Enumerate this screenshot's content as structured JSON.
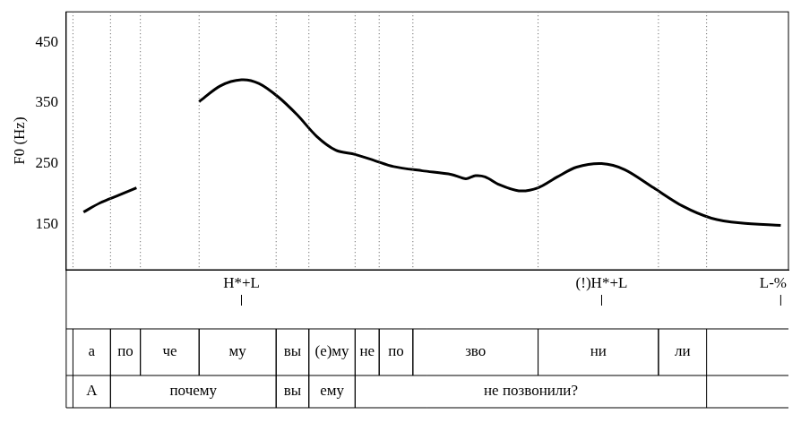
{
  "chart_data": {
    "type": "line",
    "y_label": "F0 (Hz)",
    "x": [
      0.036,
      0.07,
      0.11,
      0.146,
      0.21,
      0.276,
      0.32,
      0.364,
      0.4,
      0.44,
      0.48,
      0.52,
      0.56,
      0.6,
      0.64,
      0.68,
      0.74,
      0.8,
      0.83,
      0.85,
      0.87,
      0.9,
      0.94,
      0.98,
      1.02,
      1.06,
      1.112,
      1.16,
      1.22,
      1.28,
      1.34,
      1.4,
      1.484
    ],
    "values": [
      170,
      185,
      198,
      210,
      null,
      352,
      378,
      388,
      382,
      360,
      330,
      295,
      272,
      265,
      255,
      245,
      238,
      232,
      225,
      230,
      228,
      215,
      205,
      210,
      228,
      244,
      250,
      240,
      210,
      180,
      160,
      152,
      148
    ],
    "color": "#000000",
    "xlim": [
      0,
      1.5
    ],
    "ylim": [
      75,
      500
    ],
    "yticks": [
      150,
      250,
      350,
      450
    ],
    "grid": false,
    "tick_labels": "y",
    "tiers": [
      {
        "points": [
          {
            "x": 0.364,
            "label": "H*+L"
          },
          {
            "x": 1.112,
            "label": "(!)H*+L"
          },
          {
            "x": 1.484,
            "label": "L-%"
          }
        ]
      },
      {
        "intervals": [
          {
            "start": 0.014,
            "end": 0.092,
            "label": "а"
          },
          {
            "start": 0.092,
            "end": 0.154,
            "label": "по"
          },
          {
            "start": 0.154,
            "end": 0.276,
            "label": "че"
          },
          {
            "start": 0.276,
            "end": 0.436,
            "label": "му"
          },
          {
            "start": 0.436,
            "end": 0.504,
            "label": "вы"
          },
          {
            "start": 0.504,
            "end": 0.6,
            "label": "(е)му"
          },
          {
            "start": 0.6,
            "end": 0.65,
            "label": "не"
          },
          {
            "start": 0.65,
            "end": 0.72,
            "label": "по"
          },
          {
            "start": 0.72,
            "end": 0.98,
            "label": "зво"
          },
          {
            "start": 0.98,
            "end": 1.23,
            "label": "ни"
          },
          {
            "start": 1.23,
            "end": 1.33,
            "label": "ли"
          }
        ]
      },
      {
        "intervals": [
          {
            "start": 0.014,
            "end": 0.092,
            "label": "А"
          },
          {
            "start": 0.092,
            "end": 0.436,
            "label": "почему"
          },
          {
            "start": 0.436,
            "end": 0.504,
            "label": "вы"
          },
          {
            "start": 0.504,
            "end": 0.6,
            "label": "ему"
          },
          {
            "start": 0.6,
            "end": 1.33,
            "label": "не позвонили?"
          }
        ]
      }
    ]
  }
}
